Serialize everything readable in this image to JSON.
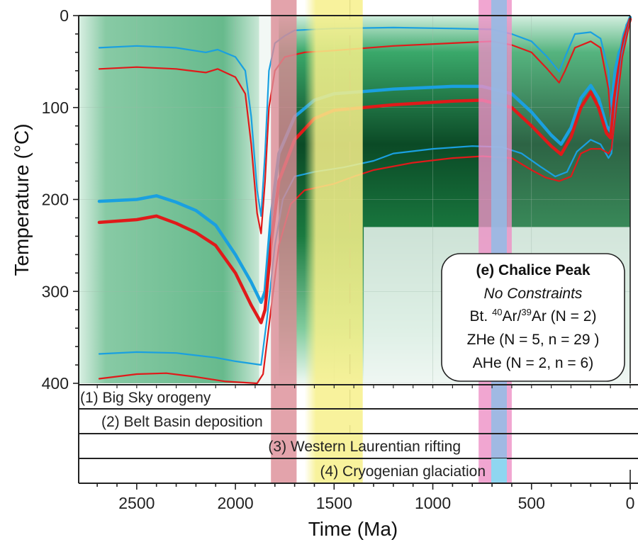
{
  "chart_data": {
    "type": "line",
    "title": "(e) Chalice Peak",
    "xlabel": "Time (Ma)",
    "ylabel": "Temperature (°C)",
    "xlim": [
      2800,
      0
    ],
    "ylim": [
      0,
      400
    ],
    "y_inverted": true,
    "grid": true,
    "x_ticks": [
      2500,
      2000,
      1500,
      1000,
      500,
      0
    ],
    "y_ticks": [
      0,
      100,
      200,
      300,
      400
    ],
    "legend": {
      "placement": "bottom-right",
      "lines": [
        {
          "text": "(e) Chalice Peak",
          "style": "bold"
        },
        {
          "text": "No Constraints",
          "style": "italic"
        },
        {
          "text_parts": [
            "Bt. ",
            "40",
            "Ar/",
            "39",
            "Ar (N = 2)"
          ],
          "style": "normal"
        },
        {
          "text": "ZHe (N = 5, n = 29 )",
          "style": "normal"
        },
        {
          "text": "AHe (N = 2, n = 6)",
          "style": "normal"
        }
      ]
    },
    "shaded_bands": [
      {
        "name": "red-band",
        "from": 1820,
        "to": 1690,
        "color": "#dc8c96"
      },
      {
        "name": "yellow-band",
        "from": 1650,
        "to": 1355,
        "color": "#f7f08a"
      },
      {
        "name": "pink-band",
        "from": 768,
        "to": 600,
        "color": "#ee90c6"
      },
      {
        "name": "blue-band",
        "from": 704,
        "to": 625,
        "color": "#92bce6"
      }
    ],
    "dashed_line_at": 1420,
    "series": [
      {
        "name": "outer-envelope-blue-top",
        "color": "#1aa0e0",
        "width": "thin",
        "points": [
          [
            2690,
            35
          ],
          [
            2500,
            33
          ],
          [
            2300,
            35
          ],
          [
            2150,
            40
          ],
          [
            2090,
            37
          ],
          [
            2000,
            45
          ],
          [
            1950,
            60
          ],
          [
            1920,
            110
          ],
          [
            1890,
            190
          ],
          [
            1870,
            218
          ],
          [
            1850,
            150
          ],
          [
            1830,
            60
          ],
          [
            1800,
            30
          ],
          [
            1750,
            22
          ],
          [
            1700,
            16
          ],
          [
            1500,
            14
          ],
          [
            1200,
            13
          ],
          [
            900,
            14
          ],
          [
            700,
            15
          ],
          [
            600,
            20
          ],
          [
            500,
            28
          ],
          [
            420,
            45
          ],
          [
            360,
            61
          ],
          [
            330,
            45
          ],
          [
            280,
            20
          ],
          [
            200,
            18
          ],
          [
            150,
            25
          ],
          [
            110,
            60
          ],
          [
            100,
            100
          ],
          [
            80,
            60
          ],
          [
            60,
            40
          ],
          [
            40,
            30
          ],
          [
            20,
            10
          ],
          [
            0,
            2
          ]
        ]
      },
      {
        "name": "outer-envelope-red-top",
        "color": "#e01a1a",
        "width": "thin",
        "points": [
          [
            2690,
            58
          ],
          [
            2500,
            56
          ],
          [
            2300,
            58
          ],
          [
            2150,
            62
          ],
          [
            2090,
            58
          ],
          [
            2000,
            67
          ],
          [
            1950,
            85
          ],
          [
            1920,
            140
          ],
          [
            1890,
            215
          ],
          [
            1870,
            237
          ],
          [
            1850,
            180
          ],
          [
            1830,
            100
          ],
          [
            1800,
            60
          ],
          [
            1750,
            45
          ],
          [
            1650,
            40
          ],
          [
            1500,
            38
          ],
          [
            1200,
            33
          ],
          [
            900,
            30
          ],
          [
            700,
            28
          ],
          [
            600,
            32
          ],
          [
            500,
            40
          ],
          [
            420,
            58
          ],
          [
            360,
            73
          ],
          [
            330,
            60
          ],
          [
            280,
            35
          ],
          [
            200,
            28
          ],
          [
            150,
            35
          ],
          [
            110,
            80
          ],
          [
            100,
            110
          ],
          [
            80,
            80
          ],
          [
            60,
            70
          ],
          [
            40,
            40
          ],
          [
            20,
            15
          ],
          [
            0,
            5
          ]
        ]
      },
      {
        "name": "mean-path-blue",
        "color": "#1aa0e0",
        "width": "thick",
        "points": [
          [
            2690,
            202
          ],
          [
            2500,
            200
          ],
          [
            2400,
            196
          ],
          [
            2300,
            203
          ],
          [
            2200,
            212
          ],
          [
            2100,
            228
          ],
          [
            2000,
            260
          ],
          [
            1920,
            290
          ],
          [
            1870,
            312
          ],
          [
            1850,
            300
          ],
          [
            1820,
            220
          ],
          [
            1780,
            150
          ],
          [
            1700,
            110
          ],
          [
            1600,
            92
          ],
          [
            1500,
            85
          ],
          [
            1200,
            80
          ],
          [
            900,
            77
          ],
          [
            750,
            77
          ],
          [
            600,
            85
          ],
          [
            500,
            105
          ],
          [
            400,
            130
          ],
          [
            350,
            140
          ],
          [
            300,
            122
          ],
          [
            250,
            90
          ],
          [
            200,
            76
          ],
          [
            160,
            90
          ],
          [
            120,
            120
          ],
          [
            100,
            126
          ],
          [
            80,
            80
          ],
          [
            60,
            50
          ],
          [
            30,
            20
          ],
          [
            0,
            2
          ]
        ]
      },
      {
        "name": "mean-path-red",
        "color": "#e01a1a",
        "width": "thick",
        "points": [
          [
            2690,
            225
          ],
          [
            2500,
            222
          ],
          [
            2400,
            218
          ],
          [
            2300,
            226
          ],
          [
            2200,
            236
          ],
          [
            2100,
            250
          ],
          [
            2000,
            280
          ],
          [
            1920,
            315
          ],
          [
            1870,
            334
          ],
          [
            1850,
            320
          ],
          [
            1820,
            250
          ],
          [
            1780,
            180
          ],
          [
            1700,
            135
          ],
          [
            1600,
            112
          ],
          [
            1500,
            103
          ],
          [
            1200,
            97
          ],
          [
            900,
            93
          ],
          [
            750,
            92
          ],
          [
            600,
            100
          ],
          [
            500,
            120
          ],
          [
            400,
            142
          ],
          [
            350,
            151
          ],
          [
            300,
            132
          ],
          [
            250,
            100
          ],
          [
            200,
            83
          ],
          [
            160,
            100
          ],
          [
            120,
            128
          ],
          [
            100,
            133
          ],
          [
            80,
            90
          ],
          [
            60,
            60
          ],
          [
            30,
            25
          ],
          [
            0,
            4
          ]
        ]
      },
      {
        "name": "outer-envelope-blue-bottom",
        "color": "#1aa0e0",
        "width": "thin",
        "points": [
          [
            2690,
            368
          ],
          [
            2500,
            366
          ],
          [
            2300,
            367
          ],
          [
            2100,
            372
          ],
          [
            2000,
            376
          ],
          [
            1870,
            380
          ],
          [
            1840,
            330
          ],
          [
            1800,
            250
          ],
          [
            1760,
            200
          ],
          [
            1700,
            175
          ],
          [
            1600,
            170
          ],
          [
            1450,
            165
          ],
          [
            1300,
            158
          ],
          [
            1200,
            150
          ],
          [
            1000,
            145
          ],
          [
            800,
            142
          ],
          [
            650,
            143
          ],
          [
            550,
            150
          ],
          [
            450,
            165
          ],
          [
            380,
            175
          ],
          [
            320,
            170
          ],
          [
            270,
            148
          ],
          [
            200,
            135
          ],
          [
            150,
            140
          ],
          [
            110,
            155
          ],
          [
            95,
            150
          ],
          [
            70,
            90
          ],
          [
            40,
            40
          ],
          [
            0,
            5
          ]
        ]
      },
      {
        "name": "outer-envelope-red-bottom",
        "color": "#e01a1a",
        "width": "thin",
        "points": [
          [
            2690,
            395
          ],
          [
            2500,
            390
          ],
          [
            2350,
            389
          ],
          [
            2200,
            393
          ],
          [
            2050,
            398
          ],
          [
            1890,
            400
          ],
          [
            1860,
            390
          ],
          [
            1820,
            320
          ],
          [
            1780,
            250
          ],
          [
            1720,
            205
          ],
          [
            1650,
            190
          ],
          [
            1500,
            183
          ],
          [
            1400,
            175
          ],
          [
            1300,
            168
          ],
          [
            1100,
            160
          ],
          [
            900,
            155
          ],
          [
            750,
            153
          ],
          [
            600,
            155
          ],
          [
            500,
            168
          ],
          [
            430,
            176
          ],
          [
            360,
            180
          ],
          [
            300,
            175
          ],
          [
            250,
            150
          ],
          [
            200,
            145
          ],
          [
            150,
            145
          ],
          [
            110,
            150
          ],
          [
            95,
            145
          ],
          [
            70,
            100
          ],
          [
            40,
            45
          ],
          [
            0,
            6
          ]
        ]
      }
    ],
    "events": [
      {
        "label": "(1) Big Sky orogeny"
      },
      {
        "label": "(2) Belt Basin deposition"
      },
      {
        "label": "(3) Western Laurentian rifting"
      },
      {
        "label": "(4) Cryogenian glaciation"
      }
    ],
    "colors": {
      "density": "#1f9a5a",
      "density_dark": "#06301a",
      "blue": "#1aa0e0",
      "red": "#e01a1a"
    }
  }
}
